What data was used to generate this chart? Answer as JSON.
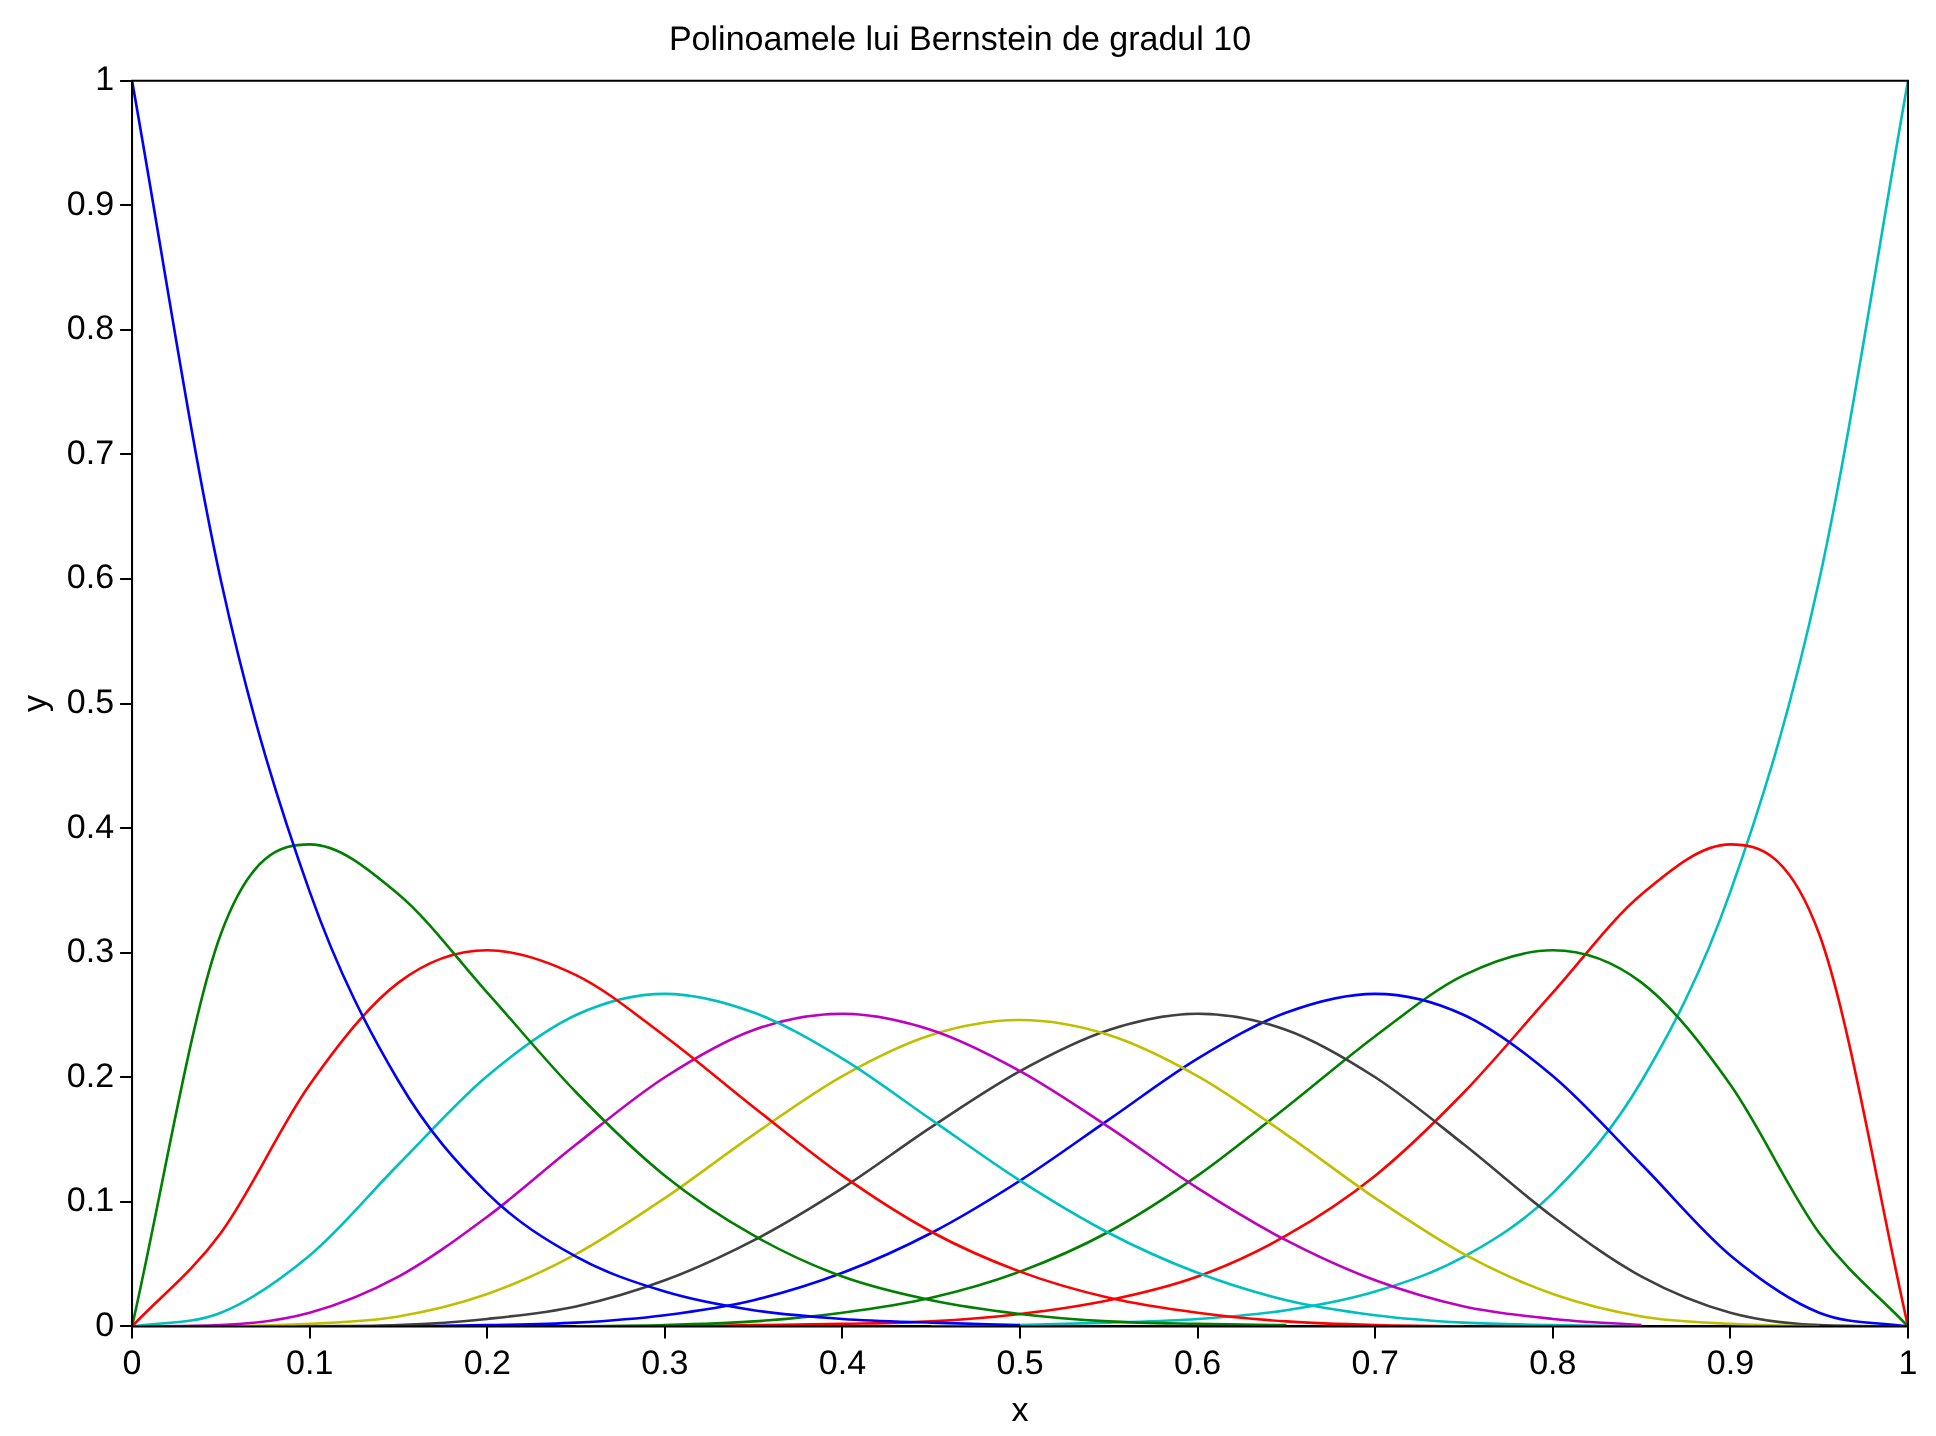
{
  "chart_data": {
    "type": "line",
    "title": "Polinoamele lui Bernstein de gradul 10",
    "xlabel": "x",
    "ylabel": "y",
    "x": [
      0,
      0.05,
      0.1,
      0.15,
      0.2,
      0.25,
      0.3,
      0.35,
      0.4,
      0.45,
      0.5,
      0.55,
      0.6,
      0.65,
      0.7,
      0.75,
      0.8,
      0.85,
      0.9,
      0.95,
      1
    ],
    "xlim": [
      0,
      1
    ],
    "xticks": [
      0,
      0.1,
      0.2,
      0.3,
      0.4,
      0.5,
      0.6,
      0.7,
      0.8,
      0.9,
      1
    ],
    "ylim": [
      0,
      1
    ],
    "yticks": [
      0,
      0.1,
      0.2,
      0.3,
      0.4,
      0.5,
      0.6,
      0.7,
      0.8,
      0.9,
      1
    ],
    "grid": false,
    "legend": false,
    "marker": "none",
    "line_style": "solid",
    "series": [
      {
        "color": "#0000ff",
        "values": [
          1,
          0.599,
          0.349,
          0.197,
          0.107,
          0.056,
          0.028,
          0.013,
          0.006,
          0.003,
          0.001,
          null,
          null,
          null,
          null,
          null,
          null,
          null,
          null,
          null,
          null
        ]
      },
      {
        "color": "#008000",
        "values": [
          0,
          0.315,
          0.387,
          0.347,
          0.268,
          0.188,
          0.121,
          0.073,
          0.04,
          0.021,
          0.01,
          0.004,
          0.002,
          0.001,
          null,
          null,
          null,
          null,
          null,
          null,
          null
        ]
      },
      {
        "color": "#ff0000",
        "values": [
          0,
          0.075,
          0.194,
          0.276,
          0.302,
          0.282,
          0.233,
          0.176,
          0.121,
          0.076,
          0.044,
          0.023,
          0.011,
          0.004,
          0.001,
          0,
          null,
          null,
          null,
          null,
          null
        ]
      },
      {
        "color": "#00bfbf",
        "values": [
          0,
          0.011,
          0.057,
          0.13,
          0.201,
          0.25,
          0.267,
          0.252,
          0.215,
          0.166,
          0.117,
          0.075,
          0.043,
          0.021,
          0.009,
          0.003,
          0.001,
          0,
          null,
          null,
          null
        ]
      },
      {
        "color": "#bf00bf",
        "values": [
          0,
          0.001,
          0.011,
          0.04,
          0.088,
          0.146,
          0.2,
          0.238,
          0.251,
          0.238,
          0.205,
          0.16,
          0.111,
          0.069,
          0.037,
          0.016,
          0.006,
          0.001,
          null,
          null,
          null
        ]
      },
      {
        "color": "#bfbf00",
        "values": [
          null,
          0,
          0.002,
          0.008,
          0.026,
          0.058,
          0.103,
          0.154,
          0.201,
          0.234,
          0.246,
          0.234,
          0.201,
          0.154,
          0.103,
          0.058,
          0.026,
          0.008,
          0.002,
          0,
          null
        ]
      },
      {
        "color": "#404040",
        "values": [
          null,
          null,
          0,
          0.001,
          0.006,
          0.016,
          0.037,
          0.069,
          0.111,
          0.16,
          0.205,
          0.238,
          0.251,
          0.238,
          0.2,
          0.146,
          0.088,
          0.04,
          0.011,
          0.001,
          0
        ]
      },
      {
        "color": "#0000ff",
        "values": [
          null,
          null,
          null,
          0,
          0.001,
          0.003,
          0.009,
          0.021,
          0.043,
          0.075,
          0.117,
          0.166,
          0.215,
          0.252,
          0.267,
          0.25,
          0.201,
          0.13,
          0.057,
          0.011,
          0
        ]
      },
      {
        "color": "#008000",
        "values": [
          null,
          null,
          null,
          null,
          null,
          0,
          0.001,
          0.004,
          0.011,
          0.023,
          0.044,
          0.076,
          0.121,
          0.176,
          0.233,
          0.282,
          0.302,
          0.276,
          0.194,
          0.075,
          0
        ]
      },
      {
        "color": "#ff0000",
        "values": [
          null,
          null,
          null,
          null,
          null,
          null,
          0,
          0.001,
          0.002,
          0.004,
          0.01,
          0.021,
          0.04,
          0.073,
          0.121,
          0.188,
          0.268,
          0.347,
          0.387,
          0.315,
          0
        ]
      },
      {
        "color": "#00bfbf",
        "values": [
          null,
          null,
          null,
          null,
          null,
          null,
          null,
          null,
          null,
          0,
          0.001,
          0.003,
          0.006,
          0.013,
          0.028,
          0.056,
          0.107,
          0.197,
          0.349,
          0.599,
          1
        ]
      }
    ]
  }
}
